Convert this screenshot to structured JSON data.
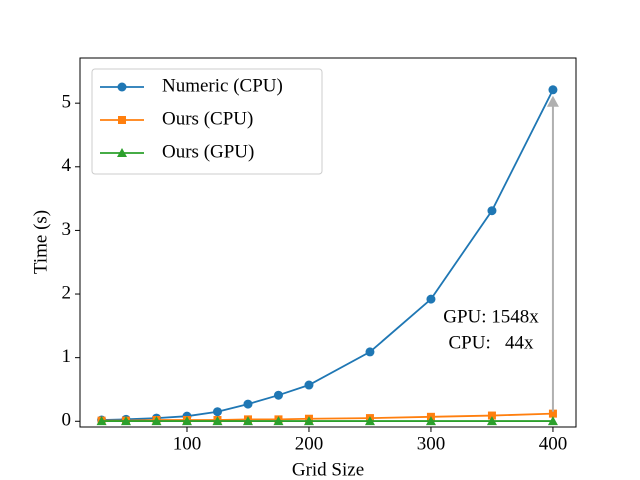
{
  "chart_data": {
    "type": "line",
    "x_label": "Grid Size",
    "y_label": "Time (s)",
    "x": [
      30,
      50,
      75,
      100,
      125,
      150,
      175,
      200,
      250,
      300,
      350,
      400
    ],
    "series": [
      {
        "name": "Numeric (CPU)",
        "color": "#1f77b4",
        "marker": "circle",
        "values": [
          0.02,
          0.03,
          0.05,
          0.08,
          0.15,
          0.27,
          0.41,
          0.57,
          1.09,
          1.92,
          3.31,
          5.21
        ]
      },
      {
        "name": "Ours (CPU)",
        "color": "#ff7f0e",
        "marker": "square",
        "values": [
          0.01,
          0.01,
          0.02,
          0.02,
          0.02,
          0.03,
          0.03,
          0.04,
          0.05,
          0.07,
          0.09,
          0.12
        ]
      },
      {
        "name": "Ours (GPU)",
        "color": "#2ca02c",
        "marker": "triangle",
        "values": [
          0.003,
          0.003,
          0.003,
          0.003,
          0.003,
          0.003,
          0.003,
          0.003,
          0.003,
          0.003,
          0.003,
          0.003
        ]
      }
    ],
    "annotations": [
      "GPU: 1548x",
      "CPU:   44x"
    ],
    "xlim": [
      12.3,
      418.9
    ],
    "ylim": [
      -0.09,
      5.71
    ],
    "xticks": [
      100,
      200,
      300,
      400
    ],
    "yticks": [
      0,
      1,
      2,
      3,
      4,
      5
    ],
    "legend": "upper left"
  }
}
